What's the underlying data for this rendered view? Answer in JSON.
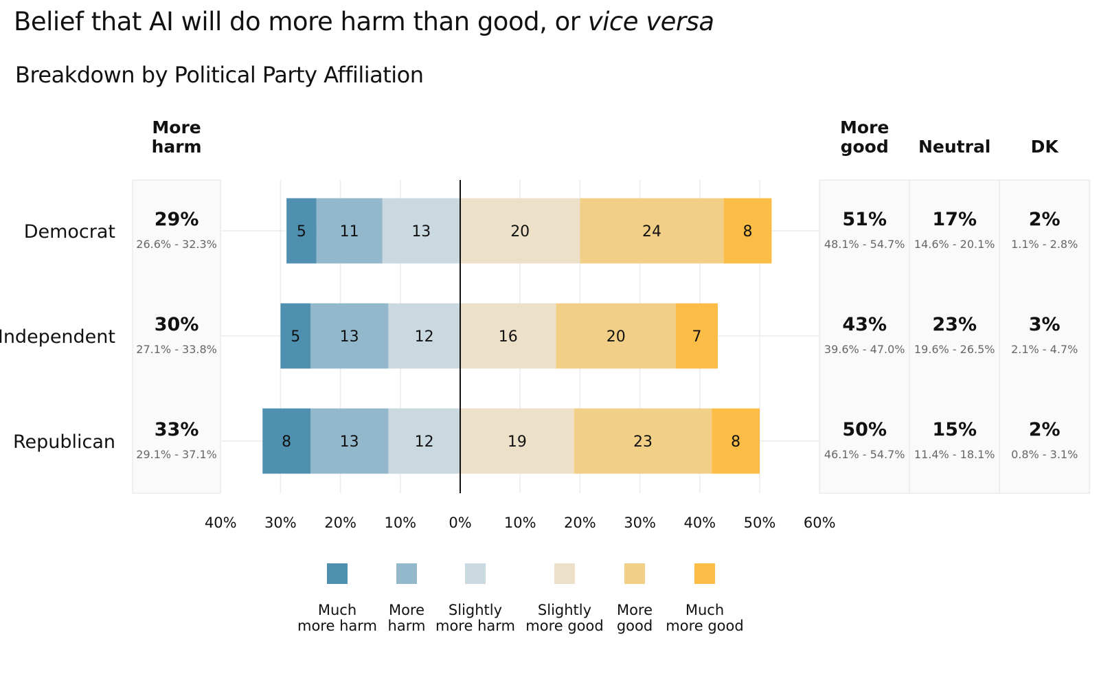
{
  "title_main": "Belief that AI will do more harm than good, or",
  "title_italic": "vice versa",
  "subtitle": "Breakdown by Political Party Affiliation",
  "columns": {
    "more_harm": [
      "More",
      "harm"
    ],
    "more_good": [
      "More",
      "good"
    ],
    "neutral": "Neutral",
    "dk": "DK"
  },
  "colors": {
    "much_more_harm": "#4f8fb0",
    "more_harm": "#93b8cc",
    "slightly_more_harm": "#cad8e0",
    "slightly_more_good": "#ece0c8",
    "more_good": "#f2cf86",
    "much_more_good": "#fbbd45",
    "panel_bg": "#fafafa",
    "grid": "#ebebeb"
  },
  "chart_data": {
    "type": "bar",
    "orientation": "horizontal-diverging",
    "categories": [
      "Democrat",
      "Independent",
      "Republican"
    ],
    "series": [
      {
        "name": "Much more harm",
        "values": [
          5,
          5,
          8
        ]
      },
      {
        "name": "More harm",
        "values": [
          11,
          13,
          13
        ]
      },
      {
        "name": "Slightly more harm",
        "values": [
          13,
          12,
          12
        ]
      },
      {
        "name": "Slightly more good",
        "values": [
          20,
          16,
          19
        ]
      },
      {
        "name": "More good",
        "values": [
          24,
          20,
          23
        ]
      },
      {
        "name": "Much more good",
        "values": [
          8,
          7,
          8
        ]
      }
    ],
    "xlim": [
      -40,
      60
    ],
    "x_ticks": [
      "40%",
      "30%",
      "20%",
      "10%",
      "0%",
      "10%",
      "20%",
      "30%",
      "40%",
      "50%",
      "60%"
    ],
    "summary": [
      {
        "party": "Democrat",
        "more_harm": {
          "value": "29%",
          "ci": "26.6% - 32.3%"
        },
        "more_good": {
          "value": "51%",
          "ci": "48.1% - 54.7%"
        },
        "neutral": {
          "value": "17%",
          "ci": "14.6% - 20.1%"
        },
        "dk": {
          "value": "2%",
          "ci": "1.1% - 2.8%"
        }
      },
      {
        "party": "Independent",
        "more_harm": {
          "value": "30%",
          "ci": "27.1% - 33.8%"
        },
        "more_good": {
          "value": "43%",
          "ci": "39.6% - 47.0%"
        },
        "neutral": {
          "value": "23%",
          "ci": "19.6% - 26.5%"
        },
        "dk": {
          "value": "3%",
          "ci": "2.1% - 4.7%"
        }
      },
      {
        "party": "Republican",
        "more_harm": {
          "value": "33%",
          "ci": "29.1% - 37.1%"
        },
        "more_good": {
          "value": "50%",
          "ci": "46.1% - 54.7%"
        },
        "neutral": {
          "value": "15%",
          "ci": "11.4% - 18.1%"
        },
        "dk": {
          "value": "2%",
          "ci": "0.8% - 3.1%"
        }
      }
    ],
    "legend": [
      [
        "Much",
        "more harm"
      ],
      [
        "More",
        "harm"
      ],
      [
        "Slightly",
        "more harm"
      ],
      [
        "Slightly",
        "more good"
      ],
      [
        "More",
        "good"
      ],
      [
        "Much",
        "more good"
      ]
    ],
    "legend_placement": "bottom",
    "grid": true
  }
}
